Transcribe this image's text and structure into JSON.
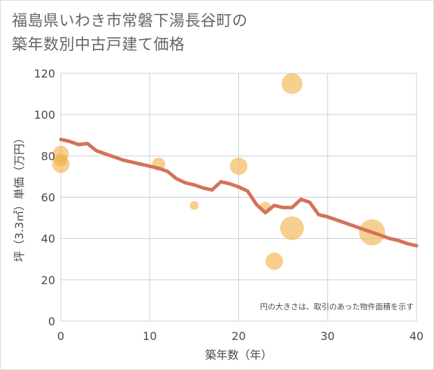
{
  "chart_data": {
    "type": "scatter",
    "title_lines": [
      "福島県いわき市常磐下湯長谷町の",
      "築年数別中古戸建て価格"
    ],
    "xlabel": "築年数（年）",
    "ylabel": "坪（3.3㎡）単価（万円）",
    "xlim": [
      0,
      40
    ],
    "ylim": [
      0,
      120
    ],
    "x_ticks": [
      0,
      10,
      20,
      30,
      40
    ],
    "y_ticks": [
      0,
      20,
      40,
      60,
      80,
      100,
      120
    ],
    "grid": true,
    "note": "円の大きさは、取引のあった物件面積を示す",
    "colors": {
      "bubble": "#f2b24a",
      "trend": "#d4725a",
      "grid": "#c8d0dc",
      "plot_border": "#c8d0dc"
    },
    "bubbles": [
      {
        "x": 0,
        "y": 81,
        "size": 5
      },
      {
        "x": 0,
        "y": 78,
        "size": 3
      },
      {
        "x": 0,
        "y": 76,
        "size": 6
      },
      {
        "x": 11,
        "y": 76,
        "size": 3
      },
      {
        "x": 15,
        "y": 56,
        "size": 1
      },
      {
        "x": 20,
        "y": 75,
        "size": 6
      },
      {
        "x": 23,
        "y": 55,
        "size": 2
      },
      {
        "x": 24,
        "y": 29,
        "size": 6
      },
      {
        "x": 26,
        "y": 115,
        "size": 9
      },
      {
        "x": 26,
        "y": 45,
        "size": 12
      },
      {
        "x": 35,
        "y": 43,
        "size": 15
      }
    ],
    "trend": {
      "x": [
        0,
        1,
        2,
        3,
        4,
        5,
        6,
        7,
        8,
        9,
        10,
        11,
        12,
        13,
        14,
        15,
        16,
        17,
        18,
        19,
        20,
        21,
        22,
        23,
        24,
        25,
        26,
        27,
        28,
        29,
        30,
        31,
        32,
        33,
        34,
        35,
        36,
        37,
        38,
        39,
        40
      ],
      "y": [
        88,
        87,
        85.5,
        86,
        82.5,
        81,
        79.5,
        78,
        77,
        76,
        75,
        74,
        72.5,
        69,
        67,
        66,
        64.5,
        63.5,
        67.5,
        66.5,
        65,
        63,
        56.5,
        52.5,
        56,
        55,
        55,
        59,
        57.5,
        51.5,
        50.5,
        49,
        47.5,
        46,
        44.5,
        43,
        41.5,
        40,
        39,
        37.5,
        36.5
      ]
    }
  }
}
